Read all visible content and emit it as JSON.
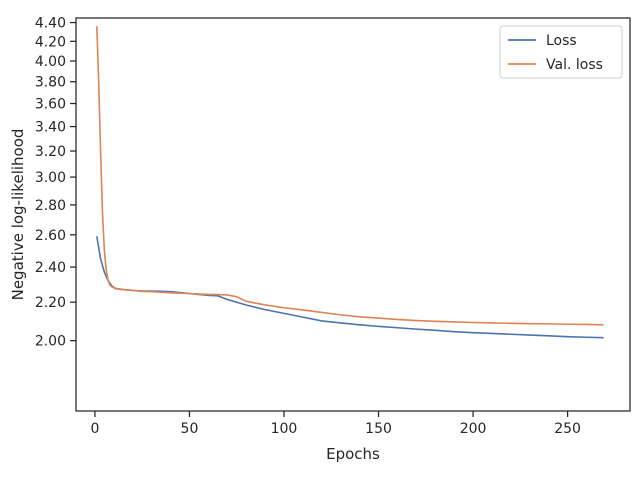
{
  "chart_data": {
    "type": "line",
    "title": "",
    "xlabel": "Epochs",
    "ylabel": "Negative log-likelihood",
    "xlim": [
      -10,
      283
    ],
    "ylim": [
      1.68,
      4.45
    ],
    "y_scale": "log",
    "x_ticks": [
      0,
      50,
      100,
      150,
      200,
      250
    ],
    "x_tick_labels": [
      "0",
      "50",
      "100",
      "150",
      "200",
      "250"
    ],
    "y_ticks": [
      2.0,
      2.2,
      2.4,
      2.6,
      2.8,
      3.0,
      3.2,
      3.4,
      3.6,
      3.8,
      4.0,
      4.2,
      4.4
    ],
    "y_tick_labels": [
      "2.00",
      "2.20",
      "2.40",
      "2.60",
      "2.80",
      "3.00",
      "3.20",
      "3.40",
      "3.60",
      "3.80",
      "4.00",
      "4.20",
      "4.40"
    ],
    "grid": false,
    "legend_position": "top-right",
    "series": [
      {
        "name": "Loss",
        "color": "#4c72b0",
        "x": [
          1,
          3,
          5,
          7,
          9,
          11,
          15,
          20,
          25,
          30,
          35,
          40,
          45,
          50,
          55,
          60,
          65,
          70,
          75,
          80,
          90,
          100,
          110,
          120,
          130,
          140,
          150,
          160,
          170,
          180,
          190,
          200,
          210,
          220,
          230,
          240,
          250,
          260,
          269
        ],
        "y": [
          2.59,
          2.45,
          2.37,
          2.32,
          2.29,
          2.275,
          2.27,
          2.265,
          2.262,
          2.262,
          2.26,
          2.258,
          2.253,
          2.248,
          2.243,
          2.238,
          2.235,
          2.215,
          2.2,
          2.185,
          2.16,
          2.14,
          2.12,
          2.1,
          2.09,
          2.08,
          2.072,
          2.065,
          2.058,
          2.052,
          2.045,
          2.04,
          2.036,
          2.032,
          2.028,
          2.024,
          2.02,
          2.017,
          2.015
        ]
      },
      {
        "name": "Val. loss",
        "color": "#dd8452",
        "x": [
          1,
          2,
          3,
          4,
          5,
          6,
          7,
          8,
          9,
          10,
          12,
          15,
          20,
          25,
          30,
          35,
          40,
          45,
          50,
          55,
          60,
          65,
          70,
          75,
          80,
          90,
          100,
          110,
          120,
          130,
          140,
          150,
          160,
          170,
          180,
          190,
          200,
          210,
          220,
          230,
          240,
          250,
          260,
          269
        ],
        "y": [
          4.36,
          3.8,
          3.2,
          2.75,
          2.5,
          2.38,
          2.32,
          2.295,
          2.285,
          2.28,
          2.275,
          2.27,
          2.265,
          2.26,
          2.258,
          2.255,
          2.252,
          2.25,
          2.248,
          2.245,
          2.243,
          2.242,
          2.24,
          2.23,
          2.205,
          2.185,
          2.17,
          2.158,
          2.145,
          2.132,
          2.122,
          2.115,
          2.108,
          2.102,
          2.098,
          2.095,
          2.092,
          2.09,
          2.088,
          2.086,
          2.085,
          2.083,
          2.082,
          2.08
        ]
      }
    ]
  }
}
